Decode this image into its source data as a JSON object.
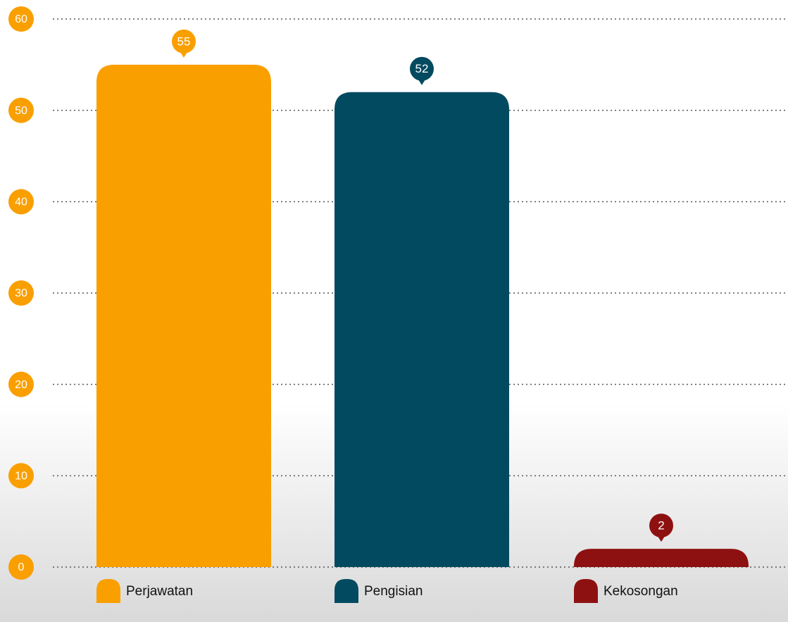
{
  "chart_data": {
    "type": "bar",
    "categories": [
      "Perjawatan",
      "Pengisian",
      "Kekosongan"
    ],
    "values": [
      55,
      52,
      2
    ],
    "colors": [
      "#fa9f00",
      "#024a60",
      "#8e1111"
    ],
    "ylim": [
      0,
      60
    ],
    "yticks": [
      0,
      10,
      20,
      30,
      40,
      50,
      60
    ],
    "grid": true,
    "legend": "bottom",
    "tick_color": "#fa9f00"
  }
}
